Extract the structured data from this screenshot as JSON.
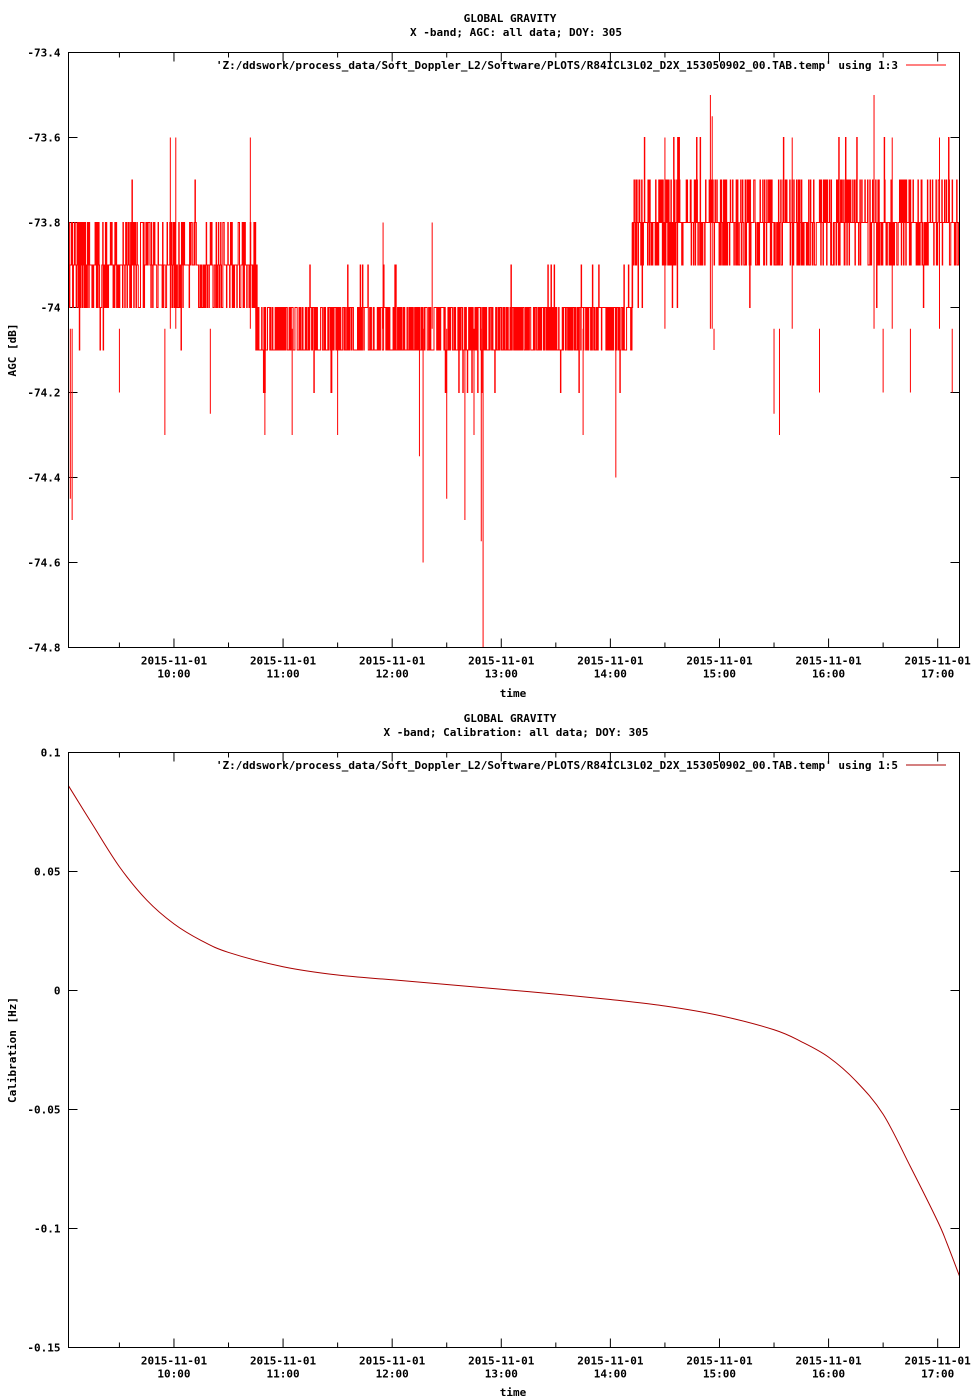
{
  "chart_data": [
    {
      "type": "line",
      "title": "GLOBAL GRAVITY",
      "subtitle": "X -band; AGC: all data; DOY: 305",
      "xlabel": "time",
      "ylabel": "AGC [dB]",
      "legend": "'Z:/ddswork/process_data/Soft_Doppler_L2/Software/PLOTS/R84ICL3L02_D2X_153050902_00.TAB.temp' using 1:3",
      "legend_position": "top-right",
      "color": "#ff0000",
      "ylim": [
        -74.8,
        -73.4
      ],
      "yticks": [
        -73.4,
        -73.6,
        -73.8,
        -74,
        -74.2,
        -74.4,
        -74.6,
        -74.8
      ],
      "ytick_labels": [
        "-73.4",
        "-73.6",
        "-73.8",
        "-74",
        "-74.2",
        "-74.4",
        "-74.6",
        "-74.8"
      ],
      "xlim": [
        "2015-11-01 09:02",
        "2015-11-01 17:12"
      ],
      "xticks": [
        "2015-11-01 10:00",
        "2015-11-01 11:00",
        "2015-11-01 12:00",
        "2015-11-01 13:00",
        "2015-11-01 14:00",
        "2015-11-01 15:00",
        "2015-11-01 16:00",
        "2015-11-01 17:00"
      ],
      "xtick_date_labels": [
        "2015-11-01",
        "2015-11-01",
        "2015-11-01",
        "2015-11-01",
        "2015-11-01",
        "2015-11-01",
        "2015-11-01",
        "2015-11-01"
      ],
      "xtick_time_labels": [
        "10:00",
        "11:00",
        "12:00",
        "13:00",
        "14:00",
        "15:00",
        "16:00",
        "17:00"
      ],
      "segments": [
        {
          "start": "2015-11-01 09:02",
          "end": "2015-11-01 10:45",
          "mean": -73.87,
          "low": -74.1,
          "high": -73.7
        },
        {
          "start": "2015-11-01 10:45",
          "end": "2015-11-01 14:12",
          "mean": -74.05,
          "low": -74.2,
          "high": -73.9
        },
        {
          "start": "2015-11-01 14:12",
          "end": "2015-11-01 17:12",
          "mean": -73.8,
          "low": -74.0,
          "high": -73.6
        }
      ],
      "spikes": [
        {
          "x": "2015-11-01 09:04",
          "y": -74.5
        },
        {
          "x": "2015-11-01 09:03",
          "y": -74.45
        },
        {
          "x": "2015-11-01 09:30",
          "y": -74.2
        },
        {
          "x": "2015-11-01 09:55",
          "y": -74.3
        },
        {
          "x": "2015-11-01 09:58",
          "y": -73.6
        },
        {
          "x": "2015-11-01 10:01",
          "y": -73.6
        },
        {
          "x": "2015-11-01 10:20",
          "y": -74.25
        },
        {
          "x": "2015-11-01 10:42",
          "y": -73.6
        },
        {
          "x": "2015-11-01 10:50",
          "y": -74.3
        },
        {
          "x": "2015-11-01 11:05",
          "y": -74.3
        },
        {
          "x": "2015-11-01 11:30",
          "y": -74.3
        },
        {
          "x": "2015-11-01 11:55",
          "y": -73.8
        },
        {
          "x": "2015-11-01 12:15",
          "y": -74.35
        },
        {
          "x": "2015-11-01 12:17",
          "y": -74.6
        },
        {
          "x": "2015-11-01 12:22",
          "y": -73.8
        },
        {
          "x": "2015-11-01 12:30",
          "y": -74.45
        },
        {
          "x": "2015-11-01 12:40",
          "y": -74.5
        },
        {
          "x": "2015-11-01 12:45",
          "y": -74.3
        },
        {
          "x": "2015-11-01 12:49",
          "y": -74.55
        },
        {
          "x": "2015-11-01 12:50",
          "y": -74.8
        },
        {
          "x": "2015-11-01 13:45",
          "y": -74.3
        },
        {
          "x": "2015-11-01 14:03",
          "y": -74.4
        },
        {
          "x": "2015-11-01 14:30",
          "y": -73.6
        },
        {
          "x": "2015-11-01 14:55",
          "y": -73.5
        },
        {
          "x": "2015-11-01 14:56",
          "y": -73.55
        },
        {
          "x": "2015-11-01 14:57",
          "y": -74.1
        },
        {
          "x": "2015-11-01 15:30",
          "y": -74.25
        },
        {
          "x": "2015-11-01 15:33",
          "y": -74.3
        },
        {
          "x": "2015-11-01 15:40",
          "y": -73.6
        },
        {
          "x": "2015-11-01 15:55",
          "y": -74.2
        },
        {
          "x": "2015-11-01 16:25",
          "y": -73.5
        },
        {
          "x": "2015-11-01 16:30",
          "y": -74.2
        },
        {
          "x": "2015-11-01 16:35",
          "y": -73.6
        },
        {
          "x": "2015-11-01 16:45",
          "y": -74.2
        },
        {
          "x": "2015-11-01 17:08",
          "y": -74.2
        },
        {
          "x": "2015-11-01 17:01",
          "y": -73.6
        }
      ]
    },
    {
      "type": "line",
      "title": "GLOBAL GRAVITY",
      "subtitle": "X -band; Calibration: all data; DOY: 305",
      "xlabel": "time",
      "ylabel": "Calibration [Hz]",
      "legend": "'Z:/ddswork/process_data/Soft_Doppler_L2/Software/PLOTS/R84ICL3L02_D2X_153050902_00.TAB.temp' using 1:5",
      "legend_position": "top-right",
      "color": "#aa0000",
      "ylim": [
        -0.15,
        0.1
      ],
      "yticks": [
        0.1,
        0.05,
        0,
        -0.05,
        -0.1,
        -0.15
      ],
      "ytick_labels": [
        "0.1",
        "0.05",
        "0",
        "-0.05",
        "-0.1",
        "-0.15"
      ],
      "xlim": [
        "2015-11-01 09:02",
        "2015-11-01 17:12"
      ],
      "xticks": [
        "2015-11-01 10:00",
        "2015-11-01 11:00",
        "2015-11-01 12:00",
        "2015-11-01 13:00",
        "2015-11-01 14:00",
        "2015-11-01 15:00",
        "2015-11-01 16:00",
        "2015-11-01 17:00"
      ],
      "xtick_date_labels": [
        "2015-11-01",
        "2015-11-01",
        "2015-11-01",
        "2015-11-01",
        "2015-11-01",
        "2015-11-01",
        "2015-11-01",
        "2015-11-01"
      ],
      "xtick_time_labels": [
        "10:00",
        "11:00",
        "12:00",
        "13:00",
        "14:00",
        "15:00",
        "16:00",
        "17:00"
      ],
      "x": [
        "2015-11-01 09:02",
        "2015-11-01 09:15",
        "2015-11-01 09:30",
        "2015-11-01 09:45",
        "2015-11-01 10:00",
        "2015-11-01 10:15",
        "2015-11-01 10:30",
        "2015-11-01 11:00",
        "2015-11-01 11:30",
        "2015-11-01 12:00",
        "2015-11-01 12:30",
        "2015-11-01 13:00",
        "2015-11-01 13:30",
        "2015-11-01 14:00",
        "2015-11-01 14:30",
        "2015-11-01 15:00",
        "2015-11-01 15:30",
        "2015-11-01 15:45",
        "2015-11-01 16:00",
        "2015-11-01 16:15",
        "2015-11-01 16:30",
        "2015-11-01 16:45",
        "2015-11-01 17:00",
        "2015-11-01 17:05",
        "2015-11-01 17:12"
      ],
      "values": [
        0.086,
        0.07,
        0.052,
        0.038,
        0.028,
        0.021,
        0.016,
        0.01,
        0.0065,
        0.0045,
        0.0025,
        0.0005,
        -0.0015,
        -0.0038,
        -0.0065,
        -0.0105,
        -0.0165,
        -0.0215,
        -0.028,
        -0.038,
        -0.052,
        -0.074,
        -0.097,
        -0.106,
        -0.12
      ]
    }
  ]
}
